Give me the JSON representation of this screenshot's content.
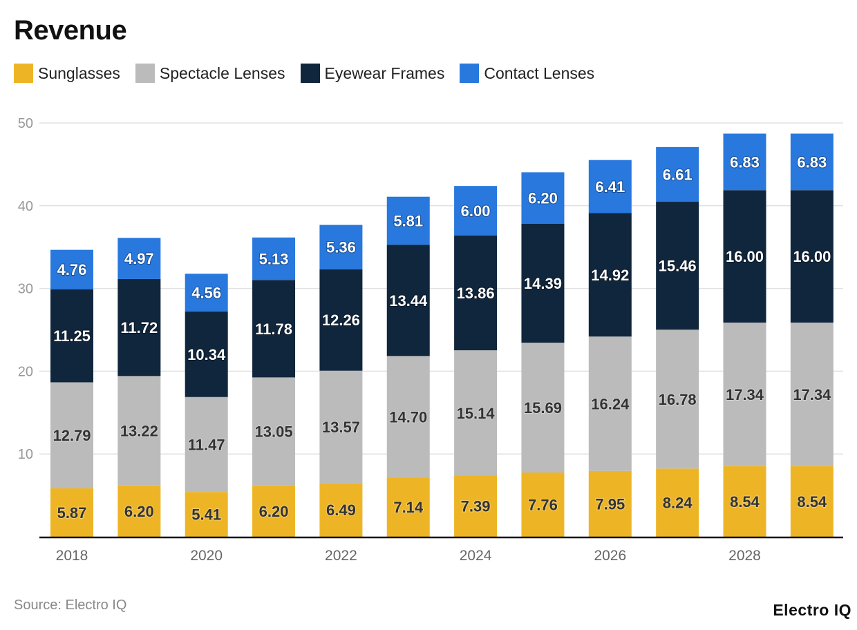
{
  "chart_data": {
    "type": "bar",
    "stacked": true,
    "title": "Revenue",
    "xlabel": "",
    "ylabel": "",
    "ylim": [
      0,
      50
    ],
    "yticks": [
      10,
      20,
      30,
      40,
      50
    ],
    "grid": true,
    "legend_placement": "top-left",
    "categories": [
      "2018",
      "2019",
      "2020",
      "2021",
      "2022",
      "2023",
      "2024",
      "2025",
      "2026",
      "2027",
      "2028",
      "2029"
    ],
    "xtick_labels": [
      "2018",
      "",
      "2020",
      "",
      "2022",
      "",
      "2024",
      "",
      "2026",
      "",
      "2028",
      ""
    ],
    "series": [
      {
        "name": "Sunglasses",
        "color": "#EDB526",
        "label_color": "#333333",
        "values": [
          5.87,
          6.2,
          5.41,
          6.2,
          6.49,
          7.14,
          7.39,
          7.76,
          7.95,
          8.24,
          8.54,
          8.54
        ]
      },
      {
        "name": "Spectacle Lenses",
        "color": "#BBBBBB",
        "label_color": "#333333",
        "values": [
          12.79,
          13.22,
          11.47,
          13.05,
          13.57,
          14.7,
          15.14,
          15.69,
          16.24,
          16.78,
          17.34,
          17.34
        ]
      },
      {
        "name": "Eyewear Frames",
        "color": "#10263D",
        "label_color": "#FFFFFF",
        "values": [
          11.25,
          11.72,
          10.34,
          11.78,
          12.26,
          13.44,
          13.86,
          14.39,
          14.92,
          15.46,
          16.0,
          16.0
        ]
      },
      {
        "name": "Contact Lenses",
        "color": "#2878DE",
        "label_color": "#FFFFFF",
        "values": [
          4.76,
          4.97,
          4.56,
          5.13,
          5.36,
          5.81,
          6.0,
          6.2,
          6.41,
          6.61,
          6.83,
          6.83
        ]
      }
    ]
  },
  "footer": {
    "source": "Source: Electro IQ",
    "logo": "Electro IQ"
  }
}
